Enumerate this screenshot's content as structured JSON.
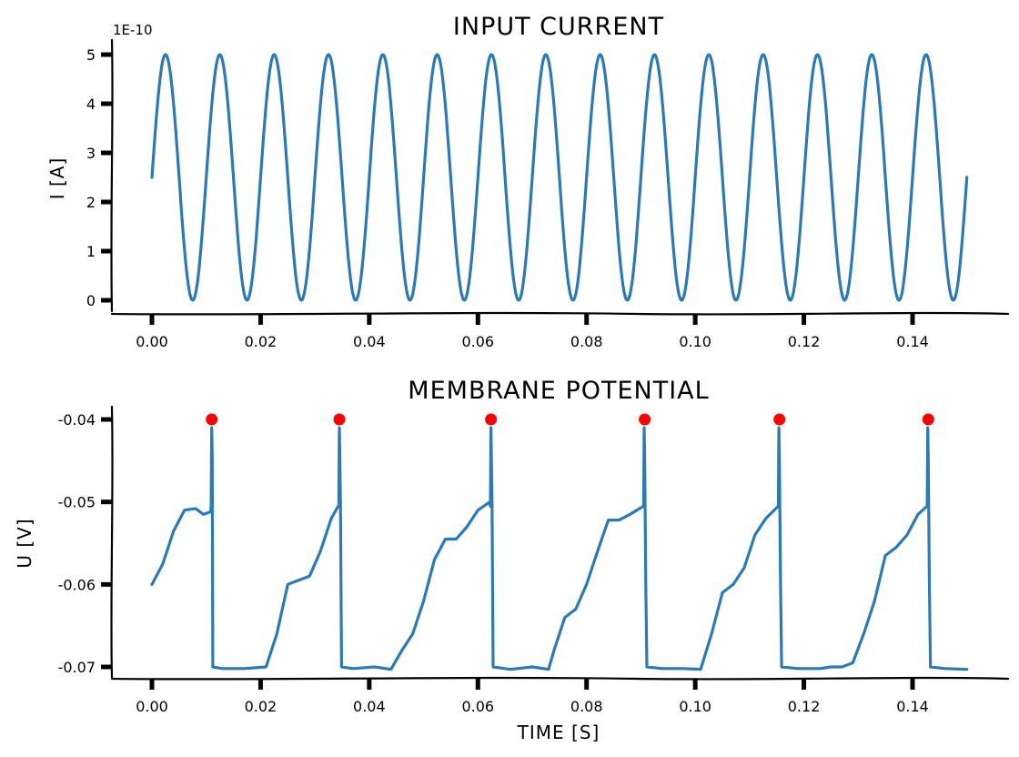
{
  "chart_data": [
    {
      "type": "line",
      "title": "INPUT CURRENT",
      "xlabel": "",
      "ylabel": "I [A]",
      "y_offset_label": "1E-10",
      "xlim": [
        -0.0075,
        0.1575
      ],
      "ylim": [
        -0.2,
        5.2
      ],
      "x_ticks": [
        0.0,
        0.02,
        0.04,
        0.06,
        0.08,
        0.1,
        0.12,
        0.14
      ],
      "x_tick_labels": [
        "0.00",
        "0.02",
        "0.04",
        "0.06",
        "0.08",
        "0.10",
        "0.12",
        "0.14"
      ],
      "y_ticks": [
        0,
        1,
        2,
        3,
        4,
        5
      ],
      "y_tick_labels": [
        "0",
        "1",
        "2",
        "3",
        "4",
        "5"
      ],
      "grid": false,
      "series": [
        {
          "color": "#2a7ab9",
          "function": "sine",
          "offset": 2.5,
          "amplitude": 2.5,
          "frequency_hz": 100,
          "phase_rad": 0,
          "x_range": [
            0.0,
            0.15
          ]
        }
      ]
    },
    {
      "type": "line",
      "title": "MEMBRANE POTENTIAL",
      "xlabel": "TIME [S]",
      "ylabel": "U [V]",
      "xlim": [
        -0.0075,
        0.1575
      ],
      "ylim": [
        -0.0715,
        -0.0385
      ],
      "x_ticks": [
        0.0,
        0.02,
        0.04,
        0.06,
        0.08,
        0.1,
        0.12,
        0.14
      ],
      "x_tick_labels": [
        "0.00",
        "0.02",
        "0.04",
        "0.06",
        "0.08",
        "0.10",
        "0.12",
        "0.14"
      ],
      "y_ticks": [
        -0.07,
        -0.06,
        -0.05,
        -0.04
      ],
      "y_tick_labels": [
        "-0.07",
        "-0.06",
        "-0.05",
        "-0.04"
      ],
      "grid": false,
      "series": [
        {
          "color": "#2a7ab9",
          "x": [
            0.0,
            0.002,
            0.004,
            0.006,
            0.008,
            0.0095,
            0.0108,
            0.0109,
            0.011,
            0.0111,
            0.0112,
            0.013,
            0.017,
            0.021,
            0.023,
            0.025,
            0.027,
            0.029,
            0.031,
            0.033,
            0.0343,
            0.0344,
            0.0345,
            0.0347,
            0.0349,
            0.037,
            0.041,
            0.044,
            0.046,
            0.048,
            0.05,
            0.052,
            0.054,
            0.056,
            0.058,
            0.06,
            0.0622,
            0.0623,
            0.0624,
            0.0626,
            0.0628,
            0.066,
            0.07,
            0.073,
            0.074,
            0.076,
            0.078,
            0.08,
            0.082,
            0.084,
            0.086,
            0.088,
            0.0905,
            0.0906,
            0.0907,
            0.0909,
            0.0911,
            0.094,
            0.098,
            0.101,
            0.103,
            0.105,
            0.107,
            0.109,
            0.111,
            0.113,
            0.1153,
            0.1154,
            0.1155,
            0.1157,
            0.1159,
            0.119,
            0.123,
            0.125,
            0.127,
            0.129,
            0.131,
            0.133,
            0.135,
            0.137,
            0.139,
            0.141,
            0.1427,
            0.1428,
            0.1429,
            0.1431,
            0.1433,
            0.146,
            0.15
          ],
          "y": [
            -0.06,
            -0.0575,
            -0.0535,
            -0.051,
            -0.0508,
            -0.0515,
            -0.0512,
            -0.0505,
            -0.041,
            -0.045,
            -0.07,
            -0.0702,
            -0.0702,
            -0.07,
            -0.066,
            -0.06,
            -0.0595,
            -0.059,
            -0.056,
            -0.052,
            -0.0505,
            -0.0505,
            -0.041,
            -0.05,
            -0.07,
            -0.0702,
            -0.07,
            -0.0703,
            -0.068,
            -0.066,
            -0.062,
            -0.057,
            -0.0545,
            -0.0545,
            -0.053,
            -0.051,
            -0.05,
            -0.0505,
            -0.041,
            -0.05,
            -0.07,
            -0.0703,
            -0.07,
            -0.0703,
            -0.068,
            -0.064,
            -0.063,
            -0.06,
            -0.056,
            -0.0522,
            -0.0522,
            -0.0515,
            -0.0505,
            -0.041,
            -0.045,
            -0.06,
            -0.07,
            -0.0702,
            -0.0702,
            -0.0703,
            -0.066,
            -0.061,
            -0.06,
            -0.058,
            -0.054,
            -0.052,
            -0.0505,
            -0.041,
            -0.045,
            -0.06,
            -0.07,
            -0.0702,
            -0.0702,
            -0.07,
            -0.07,
            -0.0695,
            -0.066,
            -0.062,
            -0.0565,
            -0.0555,
            -0.054,
            -0.0515,
            -0.0505,
            -0.041,
            -0.045,
            -0.06,
            -0.07,
            -0.0702,
            -0.0703
          ]
        },
        {
          "color": "#ff0000",
          "type": "scatter",
          "x": [
            0.011,
            0.0345,
            0.0624,
            0.0907,
            0.1155,
            0.1429
          ],
          "y": [
            -0.04,
            -0.04,
            -0.04,
            -0.04,
            -0.04,
            -0.04
          ]
        }
      ]
    }
  ]
}
